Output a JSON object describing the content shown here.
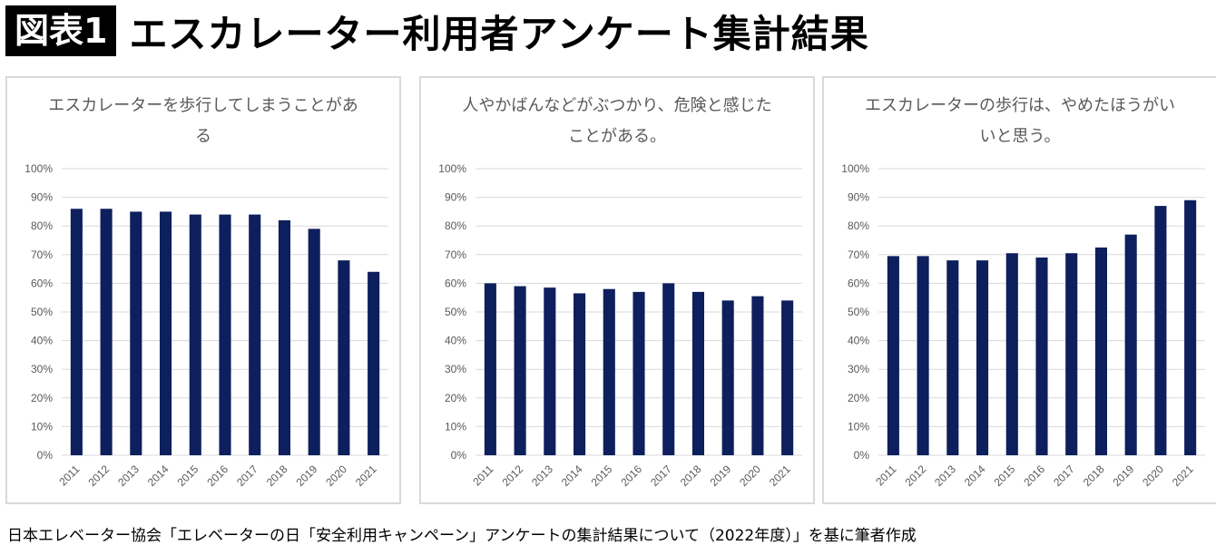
{
  "header": {
    "badge": "図表1",
    "title": "エスカレーター利用者アンケート集計結果"
  },
  "chart_data": [
    {
      "type": "bar",
      "title": "エスカレーターを歩行してしまうことがある",
      "categories": [
        "2011",
        "2012",
        "2013",
        "2014",
        "2015",
        "2016",
        "2017",
        "2018",
        "2019",
        "2020",
        "2021"
      ],
      "values": [
        86,
        86,
        85,
        85,
        84,
        84,
        84,
        82,
        79,
        68,
        64
      ],
      "ylim": [
        0,
        100
      ],
      "yticks": [
        "0%",
        "10%",
        "20%",
        "30%",
        "40%",
        "50%",
        "60%",
        "70%",
        "80%",
        "90%",
        "100%"
      ],
      "bar_color": "#0d1f5c",
      "grid": true
    },
    {
      "type": "bar",
      "title": "人やかばんなどがぶつかり、危険と感じたことがある。",
      "categories": [
        "2011",
        "2012",
        "2013",
        "2014",
        "2015",
        "2016",
        "2017",
        "2018",
        "2019",
        "2020",
        "2021"
      ],
      "values": [
        60,
        59,
        58.5,
        56.5,
        58,
        57,
        60,
        57,
        54,
        55.5,
        54
      ],
      "ylim": [
        0,
        100
      ],
      "yticks": [
        "0%",
        "10%",
        "20%",
        "30%",
        "40%",
        "50%",
        "60%",
        "70%",
        "80%",
        "90%",
        "100%"
      ],
      "bar_color": "#0d1f5c",
      "grid": true
    },
    {
      "type": "bar",
      "title": "エスカレーターの歩行は、やめたほうがいいと思う。",
      "categories": [
        "2011",
        "2012",
        "2013",
        "2014",
        "2015",
        "2016",
        "2017",
        "2018",
        "2019",
        "2020",
        "2021"
      ],
      "values": [
        69.5,
        69.5,
        68,
        68,
        70.5,
        69,
        70.5,
        72.5,
        77,
        87,
        89
      ],
      "ylim": [
        0,
        100
      ],
      "yticks": [
        "0%",
        "10%",
        "20%",
        "30%",
        "40%",
        "50%",
        "60%",
        "70%",
        "80%",
        "90%",
        "100%"
      ],
      "bar_color": "#0d1f5c",
      "grid": true
    }
  ],
  "footer": {
    "source": "日本エレベーター協会「エレベーターの日「安全利用キャンペーン」アンケートの集計結果について（2022年度）」を基に筆者作成"
  }
}
